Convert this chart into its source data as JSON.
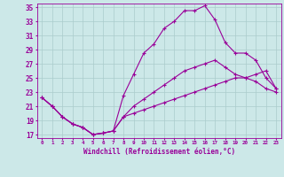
{
  "xlabel": "Windchill (Refroidissement éolien,°C)",
  "bg_color": "#cce8e8",
  "line_color": "#990099",
  "grid_color": "#aacccc",
  "xmin": 0,
  "xmax": 23,
  "ymin": 17,
  "ymax": 35,
  "yticks": [
    17,
    19,
    21,
    23,
    25,
    27,
    29,
    31,
    33,
    35
  ],
  "line1_y": [
    22.2,
    21.0,
    19.5,
    18.5,
    18.0,
    17.0,
    17.2,
    17.5,
    22.5,
    25.5,
    28.5,
    29.8,
    32.0,
    33.0,
    34.5,
    34.5,
    35.2,
    33.2,
    30.0,
    28.5,
    28.5,
    27.5,
    25.0,
    23.5
  ],
  "line2_y": [
    22.2,
    21.0,
    19.5,
    18.5,
    18.0,
    17.0,
    17.2,
    17.5,
    19.5,
    21.0,
    22.0,
    23.0,
    24.0,
    25.0,
    26.0,
    26.5,
    27.0,
    27.5,
    26.5,
    25.5,
    25.0,
    24.5,
    23.5,
    23.0
  ],
  "line3_y": [
    22.2,
    21.0,
    19.5,
    18.5,
    18.0,
    17.0,
    17.2,
    17.5,
    19.5,
    20.0,
    20.5,
    21.0,
    21.5,
    22.0,
    22.5,
    23.0,
    23.5,
    24.0,
    24.5,
    25.0,
    25.0,
    25.5,
    26.0,
    23.5
  ]
}
